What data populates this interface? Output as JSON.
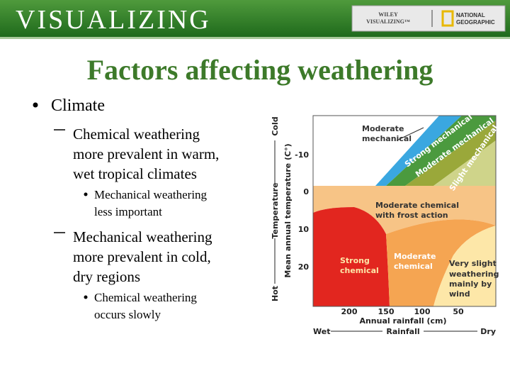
{
  "header": {
    "brand": "VISUALIZING",
    "logo_top": "WILEY",
    "logo_bottom": "VISUALIZING™",
    "partner_top": "NATIONAL",
    "partner_bottom": "GEOGRAPHIC"
  },
  "title": "Factors affecting weathering",
  "bullets": [
    {
      "lines": [
        "Climate"
      ]
    },
    {
      "lines": [
        "Chemical weathering",
        "more prevalent in warm,",
        "wet tropical climates"
      ]
    },
    {
      "lines": [
        "Mechanical weathering",
        "less important"
      ]
    },
    {
      "lines": [
        "Mechanical weathering",
        "more prevalent in cold,",
        "dry regions"
      ]
    },
    {
      "lines": [
        "Chemical weathering",
        "occurs slowly"
      ]
    }
  ],
  "diagram": {
    "y_axis": {
      "top": "Cold",
      "title": "Temperature",
      "bottom": "Hot",
      "subtitle": "Mean annual temperature (C°)",
      "ticks": [
        "-10",
        "0",
        "10",
        "20"
      ]
    },
    "x_axis": {
      "ticks": [
        "200",
        "150",
        "100",
        "50"
      ],
      "subtitle": "Annual rainfall (cm)",
      "left": "Wet",
      "title": "Rainfall",
      "right": "Dry"
    },
    "regions": {
      "moderate_mechanical_top": [
        "Moderate",
        "mechanical"
      ],
      "strong_mechanical": "Strong mechanical",
      "moderate_mechanical": "Moderate mechanical",
      "slight_mechanical": "Slight mechanical",
      "frost_action": [
        "Moderate chemical",
        "with frost action"
      ],
      "strong_chemical": [
        "Strong",
        "chemical"
      ],
      "moderate_chemical": [
        "Moderate",
        "chemical"
      ],
      "very_slight": [
        "Very slight",
        "weathering",
        "mainly by",
        "wind"
      ]
    }
  }
}
